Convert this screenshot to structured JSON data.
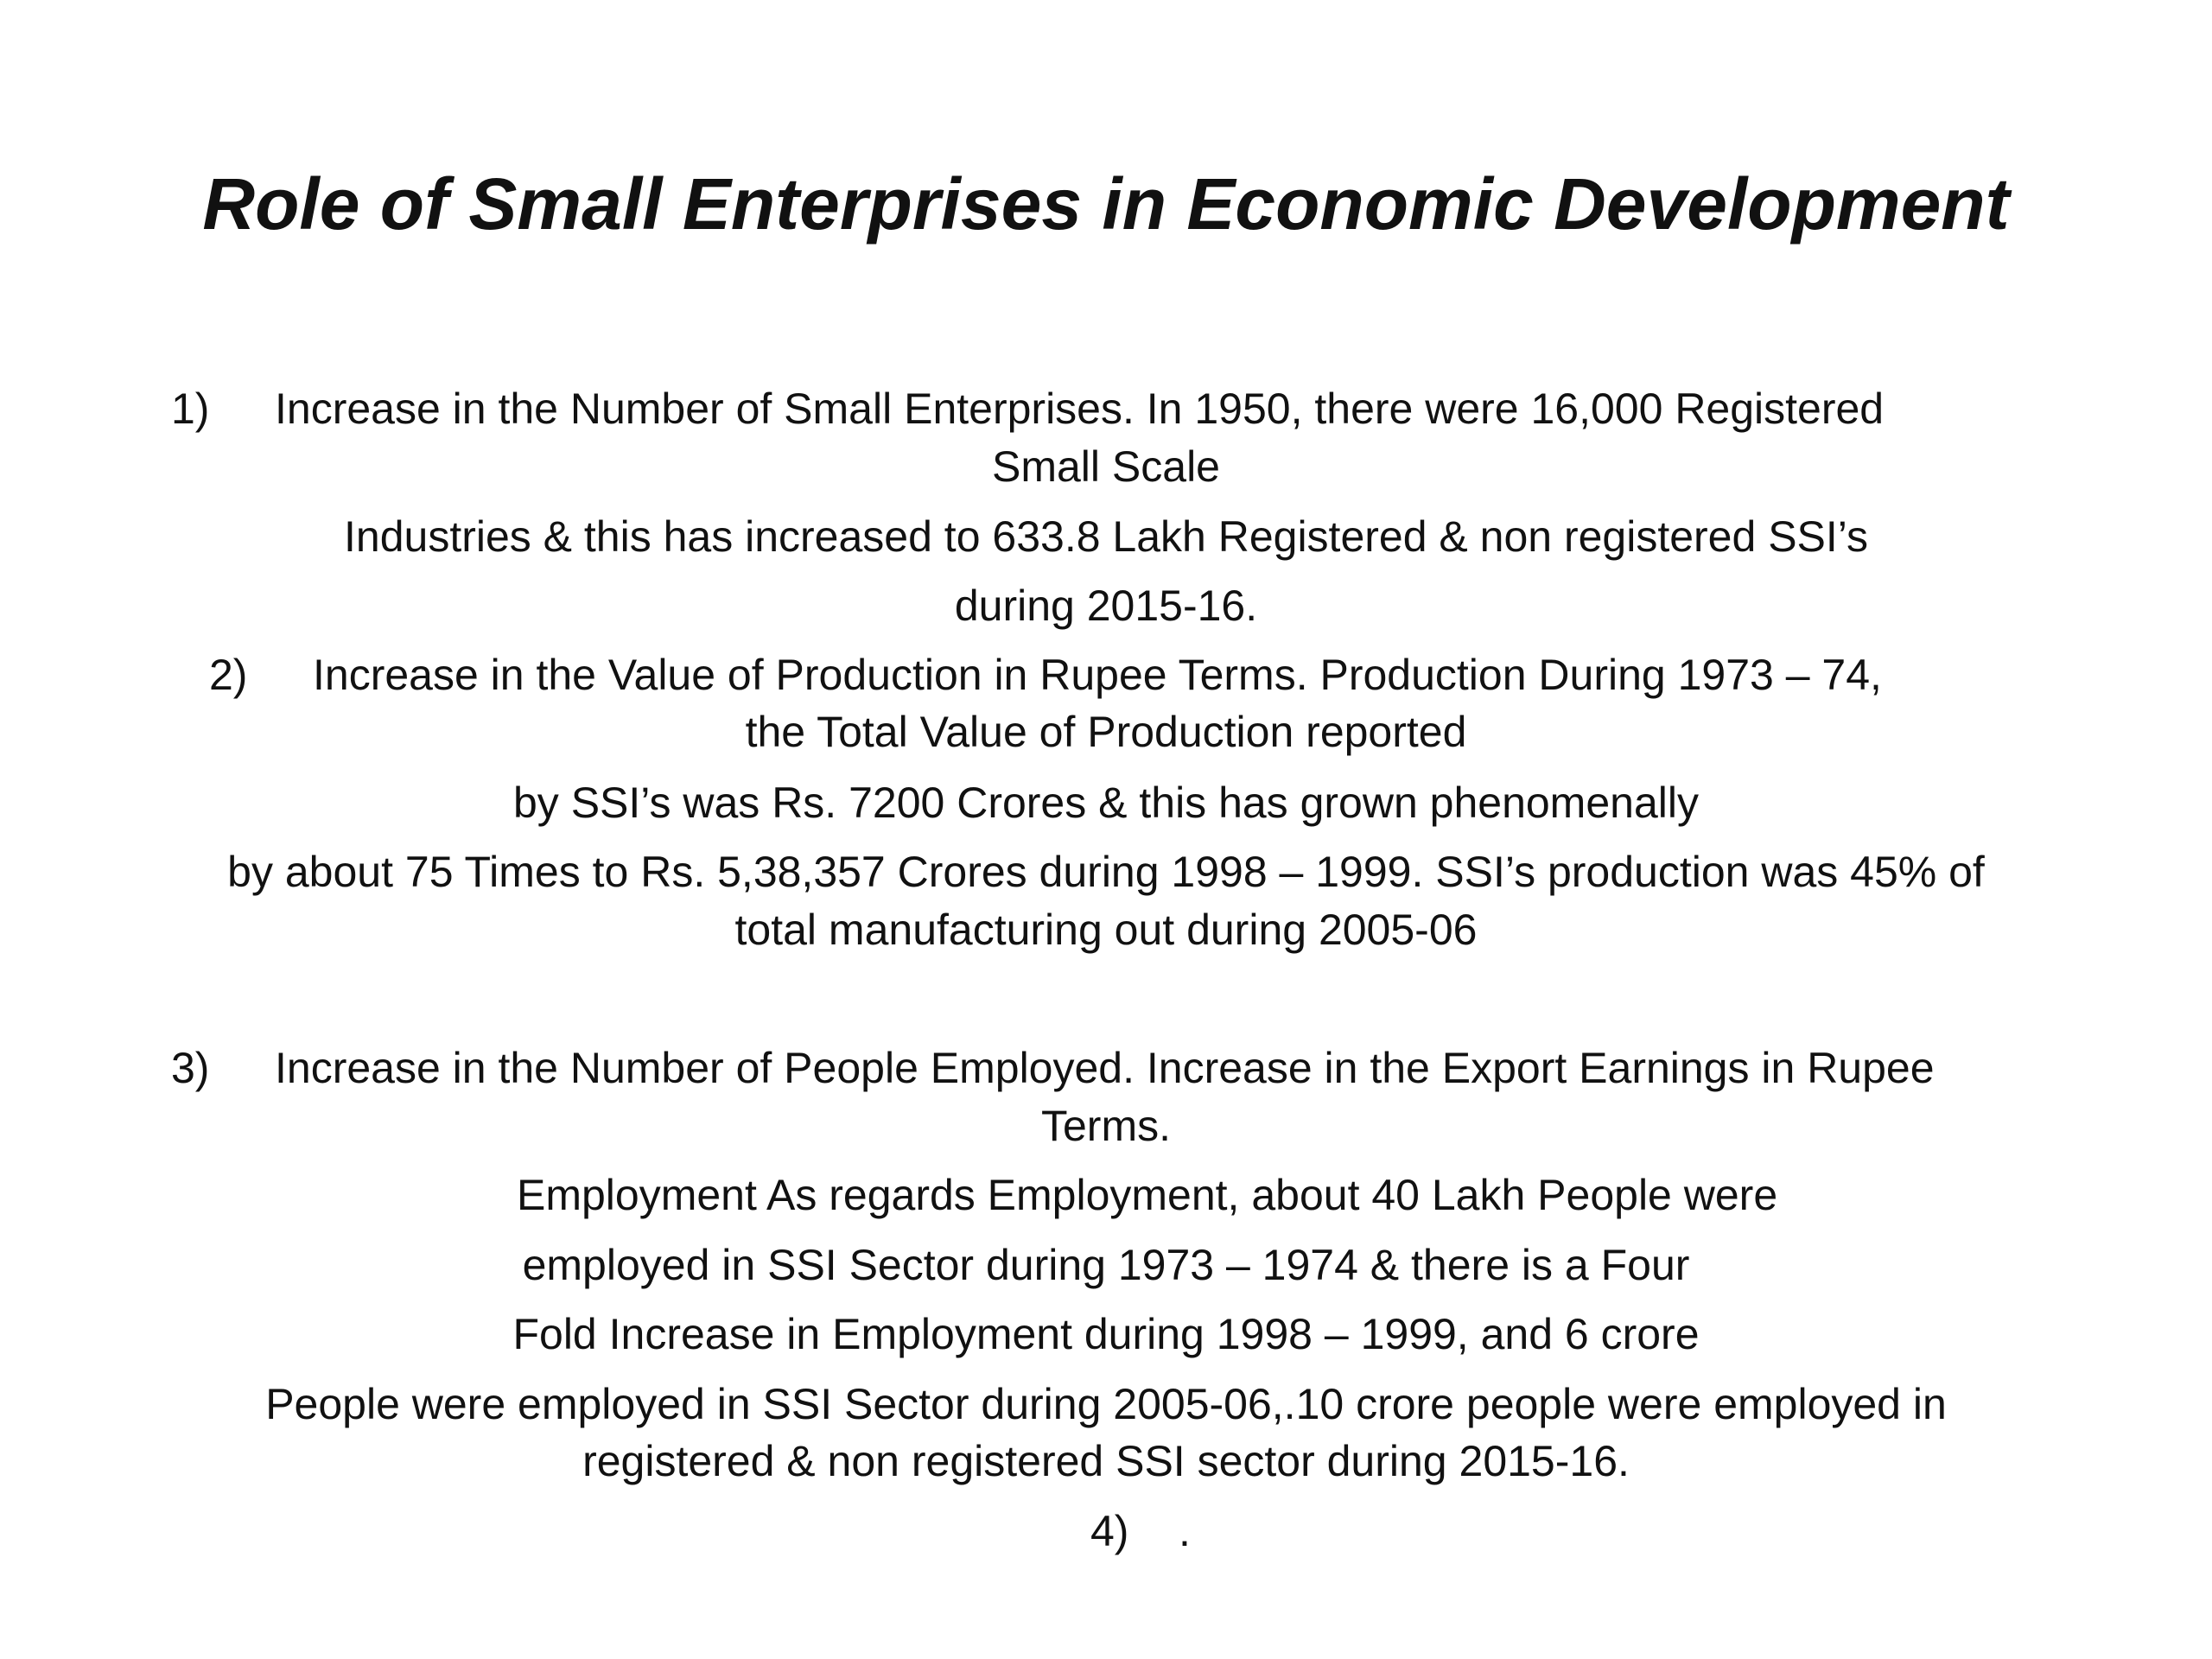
{
  "slide": {
    "title": "Role of Small Enterprises in Economic Development",
    "items": [
      {
        "number": "1)",
        "text": "Increase in the Number of Small Enterprises. In 1950, there were 16,000 Registered",
        "lines": [
          "Small Scale",
          "Industries & this has increased to  633.8 Lakh Registered & non registered SSI’s",
          "during 2015-16."
        ]
      },
      {
        "number": "2)",
        "text": "Increase in the Value of Production in Rupee Terms. Production   During 1973 – 74,",
        "lines": [
          "the Total Value of Production reported",
          "by SSI’s was Rs. 7200 Crores & this has grown phenomenally",
          "by about 75 Times to Rs. 5,38,357 Crores during 1998 – 1999. SSI’s production was 45% of",
          "total manufacturing out during 2005-06"
        ]
      },
      {
        "number": "3)",
        "text": "Increase in  the Number of People Employed. Increase in the Export Earnings in Rupee",
        "lines": [
          "Terms.",
          "Employment  As regards Employment, about 40 Lakh People were",
          "employed in SSI Sector during 1973 – 1974 & there is a Four",
          "Fold Increase in Employment during 1998 – 1999, and 6 crore",
          "People were employed in SSI Sector during 2005-06,.10 crore people were employed in",
          "registered & non  registered SSI sector during 2015-16."
        ]
      },
      {
        "number": "4)",
        "text": "."
      }
    ]
  }
}
